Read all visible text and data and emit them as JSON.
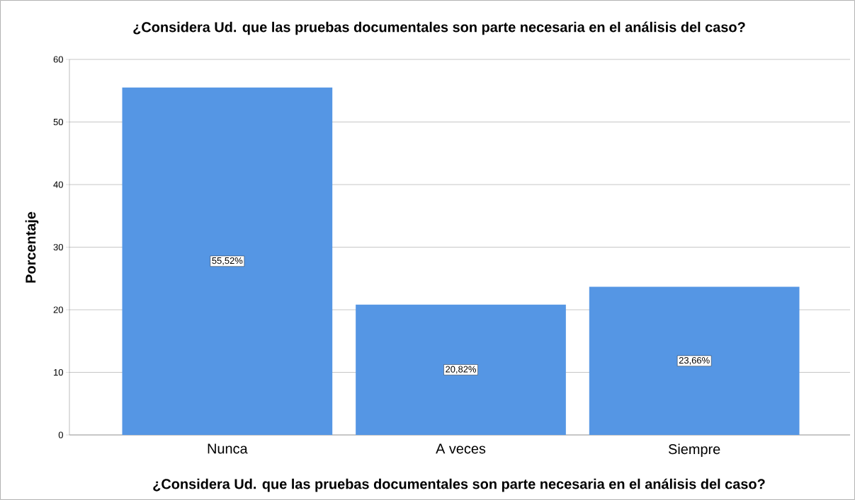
{
  "chart_data": {
    "type": "bar",
    "title": "¿Considera Ud. que las pruebas documentales son parte necesaria en el análisis del caso?",
    "xlabel": "¿Considera Ud. que las pruebas documentales son parte necesaria en el análisis del caso?",
    "ylabel": "Porcentaje",
    "categories": [
      "Nunca",
      "A veces",
      "Siempre"
    ],
    "values": [
      55.52,
      20.82,
      23.66
    ],
    "value_labels": [
      "55,52%",
      "20,82%",
      "23,66%"
    ],
    "color": "#5596e4",
    "ylim": [
      0,
      60
    ],
    "yticks": [
      0,
      10,
      20,
      30,
      40,
      50,
      60
    ],
    "grid": "y"
  }
}
